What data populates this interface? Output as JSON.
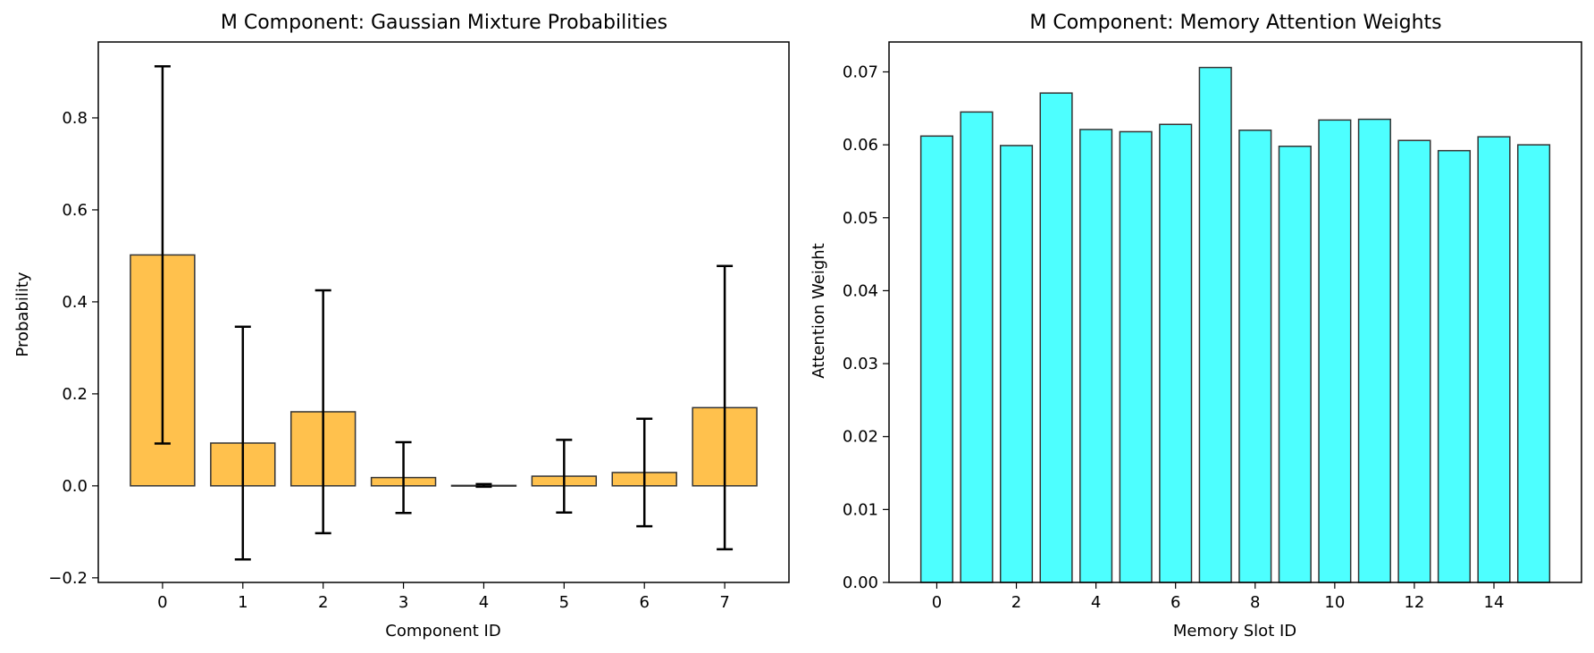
{
  "chart_data": [
    {
      "type": "bar",
      "title": "M Component: Gaussian Mixture Probabilities",
      "xlabel": "Component ID",
      "ylabel": "Probability",
      "categories": [
        "0",
        "1",
        "2",
        "3",
        "4",
        "5",
        "6",
        "7"
      ],
      "values": [
        0.502,
        0.093,
        0.161,
        0.018,
        0.001,
        0.021,
        0.029,
        0.17
      ],
      "error": [
        0.41,
        0.253,
        0.264,
        0.077,
        0.003,
        0.079,
        0.117,
        0.308
      ],
      "ylim": [
        -0.21,
        0.965
      ],
      "yticks": [
        -0.2,
        0.0,
        0.2,
        0.4,
        0.6,
        0.8
      ],
      "ytick_labels": [
        "−0.2",
        "0.0",
        "0.2",
        "0.4",
        "0.6",
        "0.8"
      ],
      "xticks": [
        0,
        1,
        2,
        3,
        4,
        5,
        6,
        7
      ],
      "xtick_labels": [
        "0",
        "1",
        "2",
        "3",
        "4",
        "5",
        "6",
        "7"
      ],
      "bar_color": "#FFC14D",
      "edge_color": "#333333",
      "grid": false
    },
    {
      "type": "bar",
      "title": "M Component: Memory Attention Weights",
      "xlabel": "Memory Slot ID",
      "ylabel": "Attention Weight",
      "categories": [
        "0",
        "1",
        "2",
        "3",
        "4",
        "5",
        "6",
        "7",
        "8",
        "9",
        "10",
        "11",
        "12",
        "13",
        "14",
        "15"
      ],
      "values": [
        0.0612,
        0.0645,
        0.0599,
        0.0671,
        0.0621,
        0.0618,
        0.0628,
        0.0706,
        0.062,
        0.0598,
        0.0634,
        0.0635,
        0.0606,
        0.0592,
        0.0611,
        0.06
      ],
      "ylim": [
        0,
        0.0741
      ],
      "yticks": [
        0,
        0.01,
        0.02,
        0.03,
        0.04,
        0.05,
        0.06,
        0.07
      ],
      "ytick_labels": [
        "0.00",
        "0.01",
        "0.02",
        "0.03",
        "0.04",
        "0.05",
        "0.06",
        "0.07"
      ],
      "xticks": [
        0,
        2,
        4,
        6,
        8,
        10,
        12,
        14
      ],
      "xtick_labels": [
        "0",
        "2",
        "4",
        "6",
        "8",
        "10",
        "12",
        "14"
      ],
      "bar_color": "#4DFFFF",
      "edge_color": "#333333",
      "grid": false
    }
  ]
}
